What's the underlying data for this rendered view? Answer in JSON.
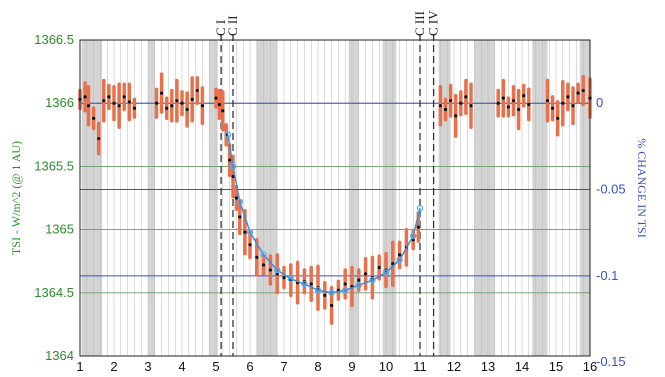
{
  "chart_data": {
    "type": "scatter",
    "title": "",
    "xlabel": "",
    "ylabel_left": "TSI - W/m^2 (@ 1 AU)",
    "ylabel_right": "% CHANGE IN TSI",
    "xlim": [
      1,
      16
    ],
    "ylim_left": [
      1364,
      1366.5
    ],
    "ylim_right_pct": [
      -0.15,
      0.015
    ],
    "x_ticks": [
      "1",
      "2",
      "3",
      "4",
      "5",
      "6",
      "7",
      "8",
      "9",
      "10",
      "11",
      "12",
      "13",
      "14",
      "15",
      "16"
    ],
    "y_ticks_left": [
      "1364",
      "1364.5",
      "1365",
      "1365.5",
      "1366",
      "1366.5"
    ],
    "y_ticks_right": [
      "0",
      "-0.05",
      "-0.1",
      "-0.15"
    ],
    "contacts": [
      {
        "label": "C I",
        "x": 5.15
      },
      {
        "label": "C II",
        "x": 5.5
      },
      {
        "label": "C III",
        "x": 11.0
      },
      {
        "label": "C IV",
        "x": 11.4
      }
    ],
    "grid": true,
    "colors": {
      "left_axis": "#2e8b2e",
      "right_axis": "#3a4fc8",
      "points": "#111111",
      "error_bars": "#e8704a",
      "model_curve": "#3a8fd8",
      "model_markers": "#5aaaf0",
      "shade": "#d4d4d4"
    },
    "series": [
      {
        "name": "",
        "points": [
          [
            1.0,
            1366.03
          ],
          [
            1.15,
            1366.05
          ],
          [
            1.25,
            1365.98
          ],
          [
            1.4,
            1365.88
          ],
          [
            1.55,
            1365.72
          ],
          [
            1.7,
            1366.02
          ],
          [
            1.85,
            1366.05
          ],
          [
            2.0,
            1366.0
          ],
          [
            2.15,
            1365.98
          ],
          [
            2.3,
            1366.05
          ],
          [
            2.45,
            1366.01
          ],
          [
            2.6,
            1365.96
          ],
          [
            3.25,
            1366.0
          ],
          [
            3.4,
            1366.08
          ],
          [
            3.55,
            1365.96
          ],
          [
            3.7,
            1365.98
          ],
          [
            3.85,
            1366.02
          ],
          [
            4.0,
            1366.0
          ],
          [
            4.15,
            1365.95
          ],
          [
            4.3,
            1366.03
          ],
          [
            4.45,
            1366.1
          ],
          [
            4.6,
            1365.98
          ],
          [
            5.0,
            1366.04
          ],
          [
            5.1,
            1365.99
          ],
          [
            5.2,
            1365.94
          ],
          [
            5.3,
            1365.75
          ],
          [
            5.4,
            1365.55
          ],
          [
            5.5,
            1365.42
          ],
          [
            5.6,
            1365.25
          ],
          [
            5.7,
            1365.1
          ],
          [
            5.85,
            1364.98
          ],
          [
            6.0,
            1364.88
          ],
          [
            6.2,
            1364.78
          ],
          [
            6.4,
            1364.72
          ],
          [
            6.6,
            1364.68
          ],
          [
            6.8,
            1364.65
          ],
          [
            7.0,
            1364.62
          ],
          [
            7.2,
            1364.6
          ],
          [
            7.4,
            1364.58
          ],
          [
            7.6,
            1364.59
          ],
          [
            7.8,
            1364.57
          ],
          [
            8.0,
            1364.54
          ],
          [
            8.2,
            1364.48
          ],
          [
            8.4,
            1364.4
          ],
          [
            8.6,
            1364.52
          ],
          [
            8.8,
            1364.57
          ],
          [
            9.0,
            1364.55
          ],
          [
            9.2,
            1364.6
          ],
          [
            9.4,
            1364.65
          ],
          [
            9.6,
            1364.62
          ],
          [
            9.8,
            1364.7
          ],
          [
            10.0,
            1364.68
          ],
          [
            10.2,
            1364.73
          ],
          [
            10.4,
            1364.8
          ],
          [
            10.6,
            1364.86
          ],
          [
            10.8,
            1364.92
          ],
          [
            10.95,
            1365.02
          ],
          [
            11.6,
            1365.98
          ],
          [
            11.75,
            1365.95
          ],
          [
            11.9,
            1366.02
          ],
          [
            12.05,
            1365.9
          ],
          [
            12.2,
            1366.0
          ],
          [
            12.35,
            1366.05
          ],
          [
            12.5,
            1365.98
          ],
          [
            13.3,
            1366.0
          ],
          [
            13.45,
            1366.04
          ],
          [
            13.6,
            1365.97
          ],
          [
            13.75,
            1366.02
          ],
          [
            13.9,
            1365.95
          ],
          [
            14.05,
            1366.06
          ],
          [
            14.2,
            1365.99
          ],
          [
            14.75,
            1366.02
          ],
          [
            14.9,
            1365.96
          ],
          [
            15.05,
            1365.88
          ],
          [
            15.2,
            1366.0
          ],
          [
            15.35,
            1366.05
          ],
          [
            15.5,
            1365.98
          ],
          [
            15.65,
            1366.08
          ],
          [
            15.8,
            1366.1
          ],
          [
            16.0,
            1366.04
          ]
        ]
      }
    ],
    "model_curve": [
      [
        5.35,
        1365.75
      ],
      [
        5.5,
        1365.5
      ],
      [
        5.7,
        1365.22
      ],
      [
        6.0,
        1364.98
      ],
      [
        6.4,
        1364.8
      ],
      [
        6.8,
        1364.68
      ],
      [
        7.2,
        1364.61
      ],
      [
        7.6,
        1364.57
      ],
      [
        8.0,
        1364.52
      ],
      [
        8.4,
        1364.5
      ],
      [
        8.8,
        1364.52
      ],
      [
        9.2,
        1364.56
      ],
      [
        9.6,
        1364.6
      ],
      [
        10.0,
        1364.66
      ],
      [
        10.4,
        1364.76
      ],
      [
        10.8,
        1364.95
      ],
      [
        11.0,
        1365.17
      ]
    ]
  }
}
